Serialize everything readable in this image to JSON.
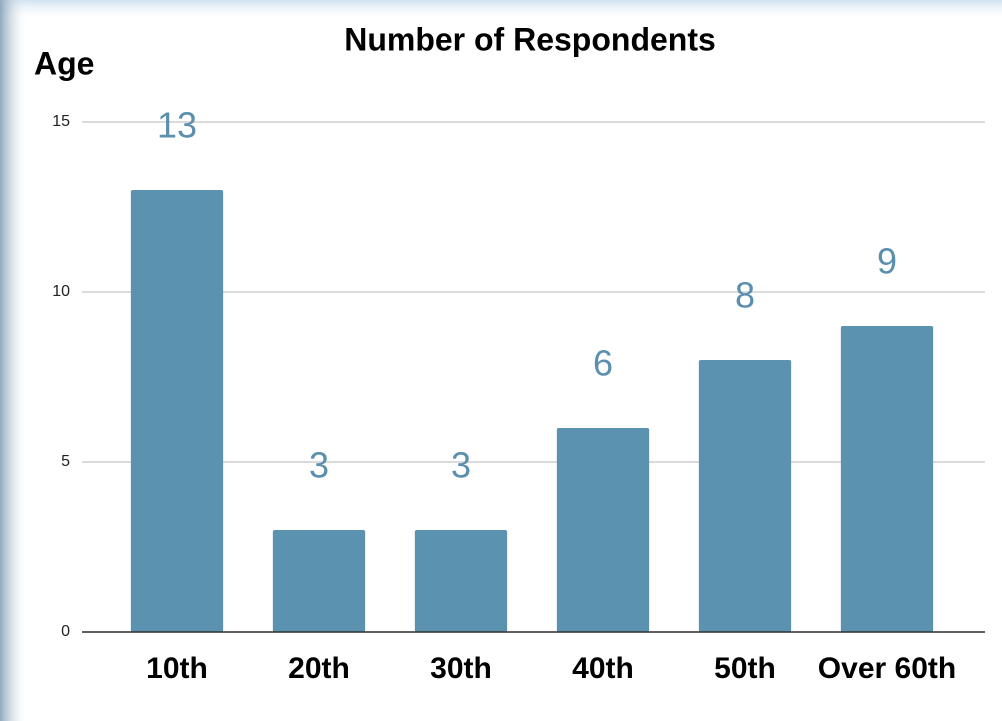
{
  "chart_data": {
    "type": "bar",
    "title": "Number of Respondents",
    "y_label": "Age",
    "categories": [
      "10th",
      "20th",
      "30th",
      "40th",
      "50th",
      "Over 60th"
    ],
    "values": [
      13,
      3,
      3,
      6,
      8,
      9
    ],
    "color": "#5b92b0",
    "ylim": [
      0,
      15
    ],
    "yticks": [
      0,
      5,
      10,
      15
    ],
    "grid": true
  }
}
